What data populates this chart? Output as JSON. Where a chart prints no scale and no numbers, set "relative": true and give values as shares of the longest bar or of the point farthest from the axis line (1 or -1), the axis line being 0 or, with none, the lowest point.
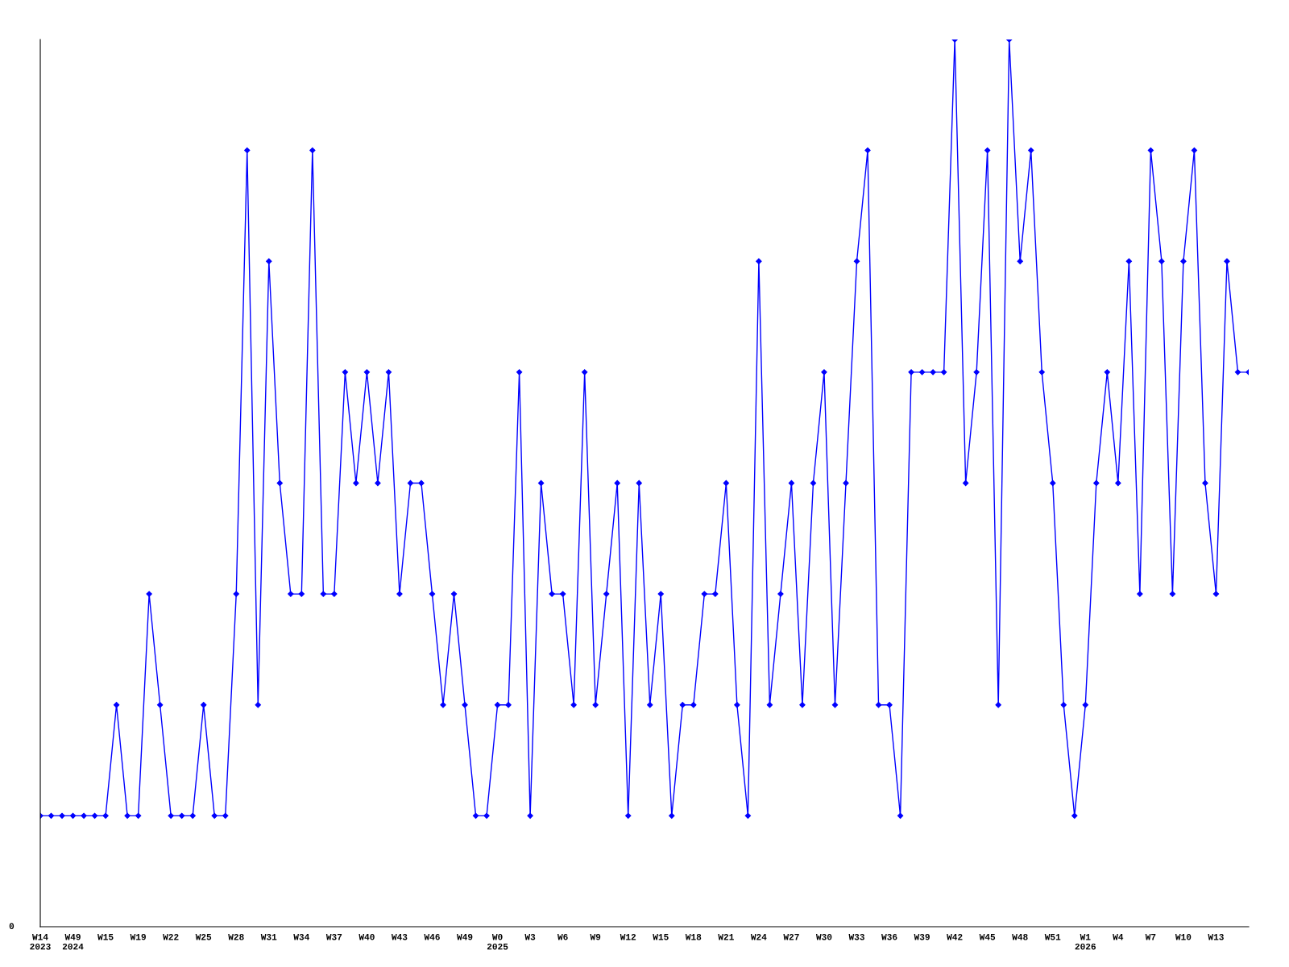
{
  "chart_data": {
    "type": "line",
    "relative": true,
    "marker": "diamond",
    "line_style": "solid",
    "grid": false,
    "legend": false,
    "annotations": [
      "0"
    ],
    "categories": [
      "W14\n2023",
      null,
      null,
      "W49\n2024",
      null,
      null,
      "W15",
      null,
      null,
      "W19",
      null,
      null,
      "W22",
      null,
      null,
      "W25",
      null,
      null,
      "W28",
      null,
      null,
      "W31",
      null,
      null,
      "W34",
      null,
      null,
      "W37",
      null,
      null,
      "W40",
      null,
      null,
      "W43",
      null,
      null,
      "W46",
      null,
      null,
      "W49",
      null,
      null,
      "W0\n2025",
      null,
      null,
      "W3",
      null,
      null,
      "W6",
      null,
      null,
      "W9",
      null,
      null,
      "W12",
      null,
      null,
      "W15",
      null,
      null,
      "W18",
      null,
      null,
      "W21",
      null,
      null,
      "W24",
      null,
      null,
      "W27",
      null,
      null,
      "W30",
      null,
      null,
      "W33",
      null,
      null,
      "W36",
      null,
      null,
      "W39",
      null,
      null,
      "W42",
      null,
      null,
      "W45",
      null,
      null,
      "W48",
      null,
      null,
      "W51",
      null,
      null,
      "W1\n2026",
      null,
      null,
      "W4",
      null,
      null,
      "W7",
      null,
      null,
      "W10",
      null,
      null,
      "W13",
      null,
      null,
      null
    ],
    "series": [
      {
        "color": "#0000ff",
        "values": [
          0.125,
          0.125,
          0.125,
          0.125,
          0.125,
          0.125,
          0.125,
          0.25,
          0.125,
          0.125,
          0.375,
          0.25,
          0.125,
          0.125,
          0.125,
          0.25,
          0.125,
          0.125,
          0.375,
          0.875,
          0.25,
          0.75,
          0.5,
          0.375,
          0.375,
          0.875,
          0.375,
          0.375,
          0.625,
          0.5,
          0.625,
          0.5,
          0.625,
          0.375,
          0.5,
          0.5,
          0.375,
          0.25,
          0.375,
          0.25,
          0.125,
          0.125,
          0.25,
          0.25,
          0.625,
          0.125,
          0.5,
          0.375,
          0.375,
          0.25,
          0.625,
          0.25,
          0.375,
          0.5,
          0.125,
          0.5,
          0.25,
          0.375,
          0.125,
          0.25,
          0.25,
          0.375,
          0.375,
          0.5,
          0.25,
          0.125,
          0.75,
          0.25,
          0.375,
          0.5,
          0.25,
          0.5,
          0.625,
          0.25,
          0.5,
          0.75,
          0.875,
          0.25,
          0.25,
          0.125,
          0.625,
          0.625,
          0.625,
          0.625,
          1,
          0.5,
          0.625,
          0.875,
          0.25,
          1,
          0.75,
          0.875,
          0.625,
          0.5,
          0.25,
          0.125,
          0.25,
          0.5,
          0.625,
          0.5,
          0.75,
          0.375,
          0.875,
          0.75,
          0.375,
          0.75,
          0.875,
          0.5,
          0.375,
          0.75,
          0.625,
          0.625
        ]
      }
    ]
  }
}
